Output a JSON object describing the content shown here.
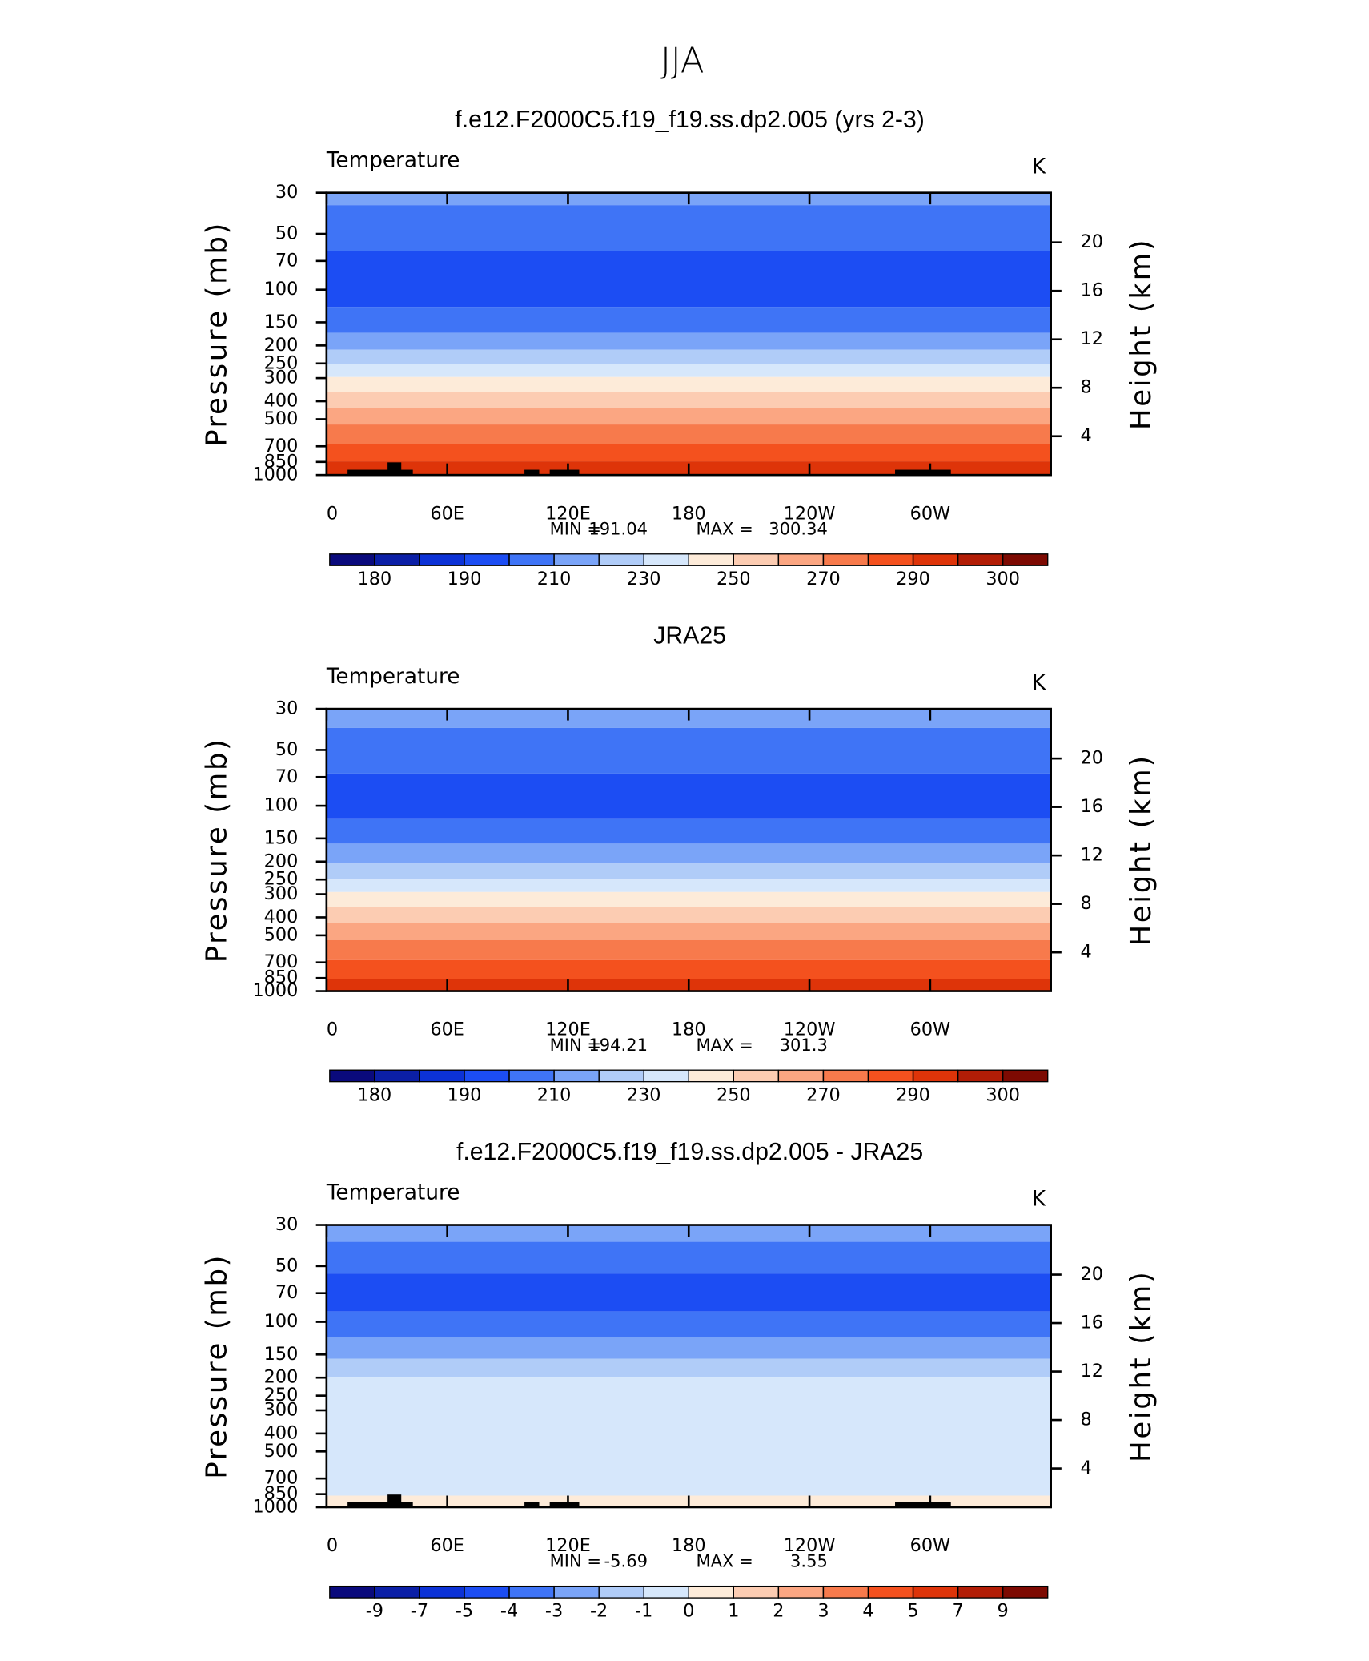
{
  "title": "JJA",
  "chart_data": [
    {
      "type": "contour",
      "title": "f.e12.F2000C5.f19_f19.ss.dp2.005 (yrs 2-3)",
      "variable": "Temperature",
      "units": "K",
      "ylabel": "Pressure (mb)",
      "y2label": "Height (km)",
      "yscale": "log",
      "ylim": [
        1000,
        30
      ],
      "yticks": [
        30,
        50,
        70,
        100,
        150,
        200,
        250,
        300,
        400,
        500,
        700,
        850,
        1000
      ],
      "y2lim": [
        0.8,
        24.1
      ],
      "y2ticks": [
        4,
        8,
        12,
        16,
        20
      ],
      "xlim": [
        0,
        360
      ],
      "xticks": [
        0,
        {
          "value": 60,
          "label": "60E"
        },
        {
          "value": 120,
          "label": "120E"
        },
        180,
        {
          "value": 240,
          "label": "120W"
        },
        {
          "value": 300,
          "label": "60W"
        }
      ],
      "bands": {
        "pressure": [
          30,
          35,
          62,
          124,
          171,
          211,
          253,
          296,
          356,
          433,
          534,
          684,
          844,
          1000
        ],
        "values": [
          215,
          205,
          195,
          205,
          215,
          225,
          235,
          245,
          255,
          265,
          275,
          285,
          292
        ]
      },
      "min_text": "MIN =",
      "min": 191.04,
      "max_text": "MAX =",
      "max": 300.34,
      "colorbar": {
        "levels": [
          180,
          185,
          190,
          200,
          210,
          220,
          230,
          240,
          250,
          260,
          270,
          280,
          290,
          295,
          300
        ],
        "label_every": 2,
        "colors": [
          "#0a0a7c",
          "#0b1fa6",
          "#0c32d6",
          "#1c4df3",
          "#3f74f6",
          "#7aa4f8",
          "#b0ccf8",
          "#d6e7fb",
          "#fdebd9",
          "#fcccb2",
          "#fba682",
          "#f77a4c",
          "#f4511e",
          "#de3409",
          "#b21d06",
          "#7d0a02"
        ]
      }
    },
    {
      "type": "contour",
      "title": "JRA25",
      "variable": "Temperature",
      "units": "K",
      "ylabel": "Pressure (mb)",
      "y2label": "Height (km)",
      "yscale": "log",
      "ylim": [
        1000,
        30
      ],
      "yticks": [
        30,
        50,
        70,
        100,
        150,
        200,
        250,
        300,
        400,
        500,
        700,
        850,
        1000
      ],
      "y2lim": [
        0.8,
        24.1
      ],
      "y2ticks": [
        4,
        8,
        12,
        16,
        20
      ],
      "xlim": [
        0,
        360
      ],
      "xticks": [
        0,
        {
          "value": 60,
          "label": "60E"
        },
        {
          "value": 120,
          "label": "120E"
        },
        180,
        {
          "value": 240,
          "label": "120W"
        },
        {
          "value": 300,
          "label": "60W"
        }
      ],
      "bands": {
        "pressure": [
          30,
          38,
          67,
          118,
          160,
          205,
          250,
          292,
          352,
          430,
          530,
          680,
          860,
          1000
        ],
        "values": [
          215,
          205,
          195,
          205,
          215,
          225,
          235,
          245,
          255,
          265,
          275,
          285,
          292
        ]
      },
      "min_text": "MIN =",
      "min": 194.21,
      "max_text": "MAX =",
      "max": 301.3,
      "colorbar": {
        "levels": [
          180,
          185,
          190,
          200,
          210,
          220,
          230,
          240,
          250,
          260,
          270,
          280,
          290,
          295,
          300
        ],
        "label_every": 2,
        "colors": [
          "#0a0a7c",
          "#0b1fa6",
          "#0c32d6",
          "#1c4df3",
          "#3f74f6",
          "#7aa4f8",
          "#b0ccf8",
          "#d6e7fb",
          "#fdebd9",
          "#fcccb2",
          "#fba682",
          "#f77a4c",
          "#f4511e",
          "#de3409",
          "#b21d06",
          "#7d0a02"
        ]
      }
    },
    {
      "type": "contour",
      "title": "f.e12.F2000C5.f19_f19.ss.dp2.005 - JRA25",
      "variable": "Temperature",
      "units": "K",
      "ylabel": "Pressure (mb)",
      "y2label": "Height (km)",
      "yscale": "log",
      "ylim": [
        1000,
        30
      ],
      "yticks": [
        30,
        50,
        70,
        100,
        150,
        200,
        250,
        300,
        400,
        500,
        700,
        850,
        1000
      ],
      "y2lim": [
        0.8,
        24.1
      ],
      "y2ticks": [
        4,
        8,
        12,
        16,
        20
      ],
      "xlim": [
        0,
        360
      ],
      "xticks": [
        0,
        {
          "value": 60,
          "label": "60E"
        },
        {
          "value": 120,
          "label": "120E"
        },
        180,
        {
          "value": 240,
          "label": "120W"
        },
        {
          "value": 300,
          "label": "60W"
        }
      ],
      "bands": {
        "pressure": [
          30,
          37,
          55,
          88,
          121,
          158,
          200,
          866,
          1000
        ],
        "values": [
          -2.5,
          -3.5,
          -4.5,
          -3.5,
          -2.5,
          -1.5,
          -0.5,
          0.5
        ]
      },
      "min_text": "MIN =",
      "min": -5.69,
      "max_text": "MAX =",
      "max": 3.55,
      "colorbar": {
        "levels": [
          -9,
          -7,
          -5,
          -4,
          -3,
          -2,
          -1,
          0,
          1,
          2,
          3,
          4,
          5,
          7,
          9
        ],
        "label_every": 1,
        "colors": [
          "#0a0a7c",
          "#0b1fa6",
          "#0c32d6",
          "#1c4df3",
          "#3f74f6",
          "#7aa4f8",
          "#b0ccf8",
          "#d6e7fb",
          "#fdebd9",
          "#fcccb2",
          "#fba682",
          "#f77a4c",
          "#f4511e",
          "#de3409",
          "#b21d06",
          "#7d0a02"
        ]
      }
    }
  ]
}
